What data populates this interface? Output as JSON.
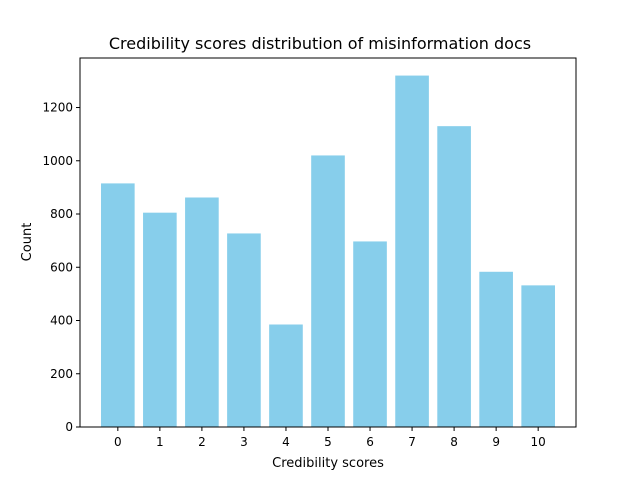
{
  "chart_data": {
    "type": "bar",
    "title": "Credibility scores distribution of misinformation docs",
    "xlabel": "Credibility scores",
    "ylabel": "Count",
    "categories": [
      "0",
      "1",
      "2",
      "3",
      "4",
      "5",
      "6",
      "7",
      "8",
      "9",
      "10"
    ],
    "values": [
      915,
      805,
      862,
      727,
      385,
      1020,
      697,
      1320,
      1130,
      583,
      532
    ],
    "ylim": [
      0,
      1386
    ],
    "yticks": [
      0,
      200,
      400,
      600,
      800,
      1000,
      1200
    ],
    "grid": false,
    "bar_color": "#87ceeb"
  }
}
